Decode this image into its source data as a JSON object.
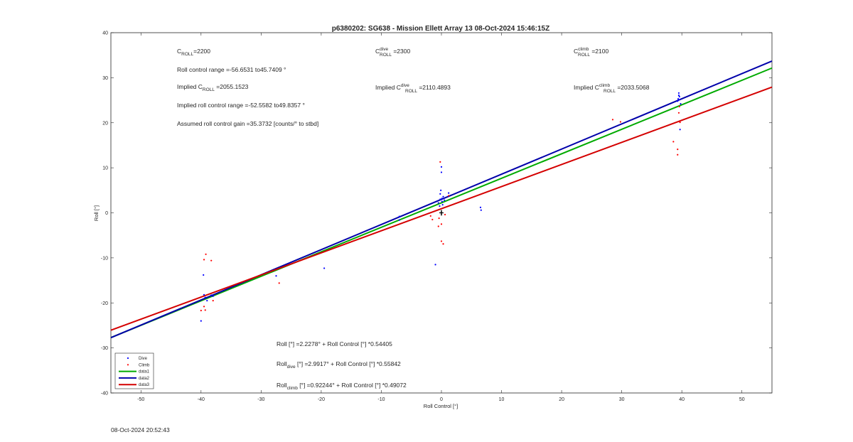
{
  "chart_data": {
    "type": "scatter",
    "title": "p6380202: SG638 - Mission Ellett Array 13 08-Oct-2024 15:46:15Z",
    "xlabel": "Roll Control [°]",
    "ylabel": "Roll [°]",
    "xlim": [
      -55,
      55
    ],
    "ylim": [
      -40,
      40
    ],
    "xticks": [
      -50,
      -40,
      -30,
      -20,
      -10,
      0,
      10,
      20,
      30,
      40,
      50
    ],
    "yticks": [
      -40,
      -30,
      -20,
      -10,
      0,
      10,
      20,
      30,
      40
    ],
    "grid": false,
    "legend_position": "bottom-left",
    "colors": {
      "dive": "#0000ff",
      "climb": "#ff0000",
      "data1": "#00aa00",
      "data2": "#0000aa",
      "data3": "#d40000",
      "center": "#000000"
    },
    "legend": [
      {
        "label": "Dive",
        "kind": "marker",
        "color": "#0000ff"
      },
      {
        "label": "Climb",
        "kind": "marker",
        "color": "#ff0000"
      },
      {
        "label": "data1",
        "kind": "line",
        "color": "#00aa00"
      },
      {
        "label": "data2",
        "kind": "line",
        "color": "#0000aa"
      },
      {
        "label": "data3",
        "kind": "line",
        "color": "#d40000"
      }
    ],
    "series": [
      {
        "name": "Dive",
        "type": "scatter",
        "color": "#0000ff",
        "points": [
          [
            -40,
            -24
          ],
          [
            -39.6,
            -13.8
          ],
          [
            -39.5,
            -18.2
          ],
          [
            -39.3,
            -18.8
          ],
          [
            -39,
            -19.5
          ],
          [
            -38.3,
            -18.3
          ],
          [
            -38,
            -18.5
          ],
          [
            -27.5,
            -14
          ],
          [
            -19.5,
            -12.3
          ],
          [
            -7,
            -0.8
          ],
          [
            -7,
            -1.6
          ],
          [
            -1,
            -11.5
          ],
          [
            -0.5,
            2.2
          ],
          [
            -0.3,
            1.5
          ],
          [
            -0.2,
            3
          ],
          [
            -0.2,
            4.2
          ],
          [
            -0.1,
            5
          ],
          [
            0,
            9
          ],
          [
            0,
            10.2
          ],
          [
            0.1,
            3.2
          ],
          [
            0.1,
            2.5
          ],
          [
            0.2,
            1.8
          ],
          [
            0.3,
            3.6
          ],
          [
            0.5,
            2.8
          ],
          [
            1.2,
            4.4
          ],
          [
            6.5,
            1.2
          ],
          [
            6.6,
            0.6
          ],
          [
            39.3,
            24.8
          ],
          [
            39.4,
            25.3
          ],
          [
            39.5,
            26.1
          ],
          [
            39.5,
            26.6
          ],
          [
            39.6,
            25.8
          ],
          [
            39.6,
            25.1
          ],
          [
            39.7,
            18.5
          ],
          [
            39.8,
            24.2
          ]
        ]
      },
      {
        "name": "Climb",
        "type": "scatter",
        "color": "#ff0000",
        "points": [
          [
            -40,
            -21.7
          ],
          [
            -39.5,
            -10.4
          ],
          [
            -39.2,
            -9.2
          ],
          [
            -39.3,
            -21.6
          ],
          [
            -39.5,
            -20.8
          ],
          [
            -38.3,
            -10.6
          ],
          [
            -38,
            -19.5
          ],
          [
            -27,
            -15.6
          ],
          [
            -1.8,
            -0.7
          ],
          [
            -1.5,
            -1.5
          ],
          [
            -0.5,
            -3
          ],
          [
            -0.4,
            -1.2
          ],
          [
            -0.2,
            11.3
          ],
          [
            0,
            -2.5
          ],
          [
            0,
            -6.3
          ],
          [
            0.3,
            -6.9
          ],
          [
            0.6,
            -0.4
          ],
          [
            1.2,
            3.8
          ],
          [
            28.5,
            20.7
          ],
          [
            29.8,
            20.2
          ],
          [
            38.6,
            15.8
          ],
          [
            39.3,
            14.1
          ],
          [
            39.3,
            12.9
          ],
          [
            39.5,
            22.2
          ],
          [
            39.6,
            23.6
          ],
          [
            39.7,
            20.1
          ]
        ]
      },
      {
        "name": "data1",
        "type": "line",
        "color": "#00aa00",
        "x": [
          -55,
          55
        ],
        "y": [
          -27.696,
          32.149
        ]
      },
      {
        "name": "data2",
        "type": "line",
        "color": "#0000aa",
        "x": [
          -55,
          55
        ],
        "y": [
          -27.722,
          33.704
        ]
      },
      {
        "name": "data3",
        "type": "line",
        "color": "#d40000",
        "x": [
          -55,
          55
        ],
        "y": [
          -26.067,
          27.912
        ]
      }
    ],
    "center_marker": {
      "color": "#000000",
      "x": 0,
      "y_range": [
        -0.6,
        0.6
      ]
    },
    "annotations": {
      "c_roll_main": "C",
      "c_roll_main_sub": "ROLL",
      "c_roll_main_val": "=2200",
      "range": "Roll control range =-56.6531 to45.7409 °",
      "implied_c_main": "Implied C",
      "implied_c_main_sub": "ROLL",
      "implied_c_main_val": " =2055.1523",
      "implied_range": "Implied roll control range =-52.5582 to49.8357 °",
      "gain": "Assumed roll control gain =35.3732 [counts/° to stbd]",
      "c_dive": "C",
      "c_dive_sup": "dive",
      "c_dive_sub": "ROLL",
      "c_dive_val": " =2300",
      "implied_c_dive": "Implied C",
      "implied_c_dive_sup": "dive",
      "implied_c_dive_sub": "ROLL",
      "implied_c_dive_val": " =2110.4893",
      "c_climb": "C",
      "c_climb_sup": "climb",
      "c_climb_sub": "ROLL",
      "c_climb_val": " =2100",
      "implied_c_climb": "Implied C",
      "implied_c_climb_sup": "climb",
      "implied_c_climb_sub": "ROLL",
      "implied_c_climb_val": " =2033.5068",
      "fit_all": "Roll [°] =2.2278° + Roll Control [°] *0.54405",
      "fit_dive_a": "Roll",
      "fit_dive_sub": "dive",
      "fit_dive_b": " [°] =2.9917° + Roll Control [°] *0.55842",
      "fit_climb_a": "Roll",
      "fit_climb_sub": "climb",
      "fit_climb_b": " [°] =0.92244° + Roll Control [°] *0.49072"
    }
  },
  "footer_timestamp": "08-Oct-2024 20:52:43"
}
